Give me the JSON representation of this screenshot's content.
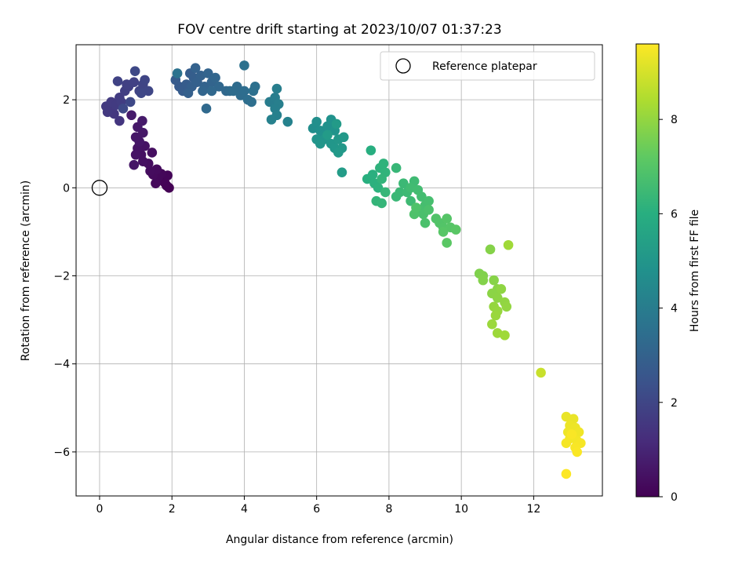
{
  "chart_data": {
    "type": "scatter",
    "title": "FOV centre drift starting at 2023/10/07 01:37:23",
    "xlabel": "Angular distance from reference (arcmin)",
    "ylabel": "Rotation from reference (arcmin)",
    "xlim": [
      -0.65,
      13.9
    ],
    "ylim": [
      -7.0,
      3.25
    ],
    "xticks": [
      0,
      2,
      4,
      6,
      8,
      10,
      12
    ],
    "yticks": [
      -6,
      -4,
      -2,
      0,
      2
    ],
    "grid": true,
    "legend": {
      "position": "top-right",
      "entries": [
        "Reference platepar"
      ]
    },
    "reference_point": {
      "x": 0,
      "y": 0,
      "label": "Reference platepar"
    },
    "colorbar": {
      "label": "Hours from first FF file",
      "range": [
        0,
        9.6
      ],
      "ticks": [
        0,
        2,
        4,
        6,
        8
      ],
      "colormap": "viridis"
    },
    "series": [
      {
        "color_variable": "hours",
        "points": [
          [
            1.92,
            0.0,
            0.0
          ],
          [
            1.85,
            0.05,
            0.03
          ],
          [
            1.8,
            0.12,
            0.06
          ],
          [
            1.75,
            0.2,
            0.09
          ],
          [
            1.88,
            0.28,
            0.12
          ],
          [
            1.7,
            0.32,
            0.15
          ],
          [
            1.62,
            0.25,
            0.18
          ],
          [
            1.55,
            0.1,
            0.21
          ],
          [
            1.48,
            0.3,
            0.24
          ],
          [
            1.58,
            0.42,
            0.27
          ],
          [
            1.4,
            0.38,
            0.3
          ],
          [
            1.35,
            0.55,
            0.33
          ],
          [
            1.45,
            0.8,
            0.36
          ],
          [
            1.2,
            0.6,
            0.39
          ],
          [
            1.15,
            0.75,
            0.42
          ],
          [
            1.25,
            0.95,
            0.45
          ],
          [
            1.05,
            0.9,
            0.48
          ],
          [
            1.0,
            0.75,
            0.51
          ],
          [
            0.95,
            0.52,
            0.54
          ],
          [
            1.1,
            1.05,
            0.57
          ],
          [
            1.0,
            1.15,
            0.6
          ],
          [
            1.2,
            1.25,
            0.63
          ],
          [
            1.05,
            1.38,
            0.66
          ],
          [
            1.18,
            1.52,
            0.69
          ],
          [
            0.88,
            1.65,
            0.72
          ],
          [
            0.55,
            1.52,
            1.5
          ],
          [
            0.4,
            1.68,
            1.52
          ],
          [
            0.3,
            1.8,
            1.55
          ],
          [
            0.22,
            1.72,
            1.58
          ],
          [
            0.18,
            1.85,
            1.61
          ],
          [
            0.32,
            1.95,
            1.64
          ],
          [
            0.45,
            1.88,
            1.67
          ],
          [
            0.55,
            2.05,
            1.7
          ],
          [
            0.6,
            1.95,
            1.73
          ],
          [
            0.7,
            2.2,
            1.76
          ],
          [
            0.8,
            2.3,
            1.79
          ],
          [
            0.75,
            2.35,
            1.82
          ],
          [
            0.95,
            2.4,
            1.85
          ],
          [
            0.5,
            2.42,
            1.88
          ],
          [
            1.1,
            2.2,
            1.91
          ],
          [
            1.2,
            2.35,
            1.94
          ],
          [
            1.25,
            2.45,
            1.97
          ],
          [
            1.35,
            2.2,
            2.0
          ],
          [
            1.15,
            2.15,
            2.03
          ],
          [
            0.98,
            2.65,
            2.06
          ],
          [
            0.85,
            1.95,
            2.09
          ],
          [
            0.65,
            1.8,
            2.12
          ],
          [
            2.2,
            2.3,
            2.7
          ],
          [
            2.1,
            2.45,
            2.73
          ],
          [
            2.3,
            2.2,
            2.76
          ],
          [
            2.4,
            2.35,
            2.79
          ],
          [
            2.5,
            2.6,
            2.82
          ],
          [
            2.6,
            2.5,
            2.85
          ],
          [
            2.55,
            2.3,
            2.88
          ],
          [
            2.45,
            2.15,
            2.91
          ],
          [
            2.7,
            2.4,
            2.94
          ],
          [
            2.8,
            2.55,
            2.97
          ],
          [
            2.65,
            2.72,
            3.0
          ],
          [
            2.9,
            2.3,
            3.03
          ],
          [
            3.0,
            2.6,
            3.06
          ],
          [
            3.1,
            2.4,
            3.09
          ],
          [
            2.85,
            2.2,
            3.12
          ],
          [
            3.2,
            2.5,
            3.15
          ],
          [
            3.3,
            2.3,
            3.18
          ],
          [
            3.5,
            2.2,
            3.21
          ],
          [
            3.1,
            2.2,
            3.24
          ],
          [
            2.95,
            1.8,
            3.27
          ],
          [
            3.6,
            2.2,
            3.3
          ],
          [
            3.8,
            2.3,
            3.33
          ],
          [
            3.7,
            2.2,
            3.36
          ],
          [
            3.9,
            2.1,
            3.39
          ],
          [
            4.0,
            2.2,
            3.42
          ],
          [
            4.1,
            2.0,
            3.45
          ],
          [
            4.2,
            1.95,
            3.48
          ],
          [
            4.3,
            2.3,
            3.51
          ],
          [
            4.25,
            2.2,
            3.54
          ],
          [
            4.0,
            2.78,
            3.57
          ],
          [
            2.15,
            2.6,
            3.6
          ],
          [
            4.7,
            1.95,
            4.0
          ],
          [
            4.85,
            2.05,
            4.03
          ],
          [
            4.9,
            2.25,
            4.06
          ],
          [
            4.95,
            1.9,
            4.09
          ],
          [
            4.85,
            1.8,
            4.12
          ],
          [
            4.9,
            1.65,
            4.15
          ],
          [
            4.75,
            1.55,
            4.18
          ],
          [
            5.2,
            1.5,
            4.21
          ],
          [
            5.9,
            1.35,
            4.7
          ],
          [
            6.0,
            1.5,
            4.73
          ],
          [
            6.1,
            1.3,
            4.76
          ],
          [
            6.2,
            1.2,
            4.79
          ],
          [
            6.3,
            1.4,
            4.82
          ],
          [
            6.4,
            1.55,
            4.85
          ],
          [
            6.5,
            1.3,
            4.88
          ],
          [
            6.2,
            1.1,
            4.91
          ],
          [
            6.0,
            1.1,
            4.94
          ],
          [
            6.1,
            1.0,
            4.97
          ],
          [
            6.4,
            1.0,
            5.0
          ],
          [
            6.5,
            0.9,
            5.03
          ],
          [
            6.6,
            1.1,
            5.06
          ],
          [
            6.7,
            0.9,
            5.09
          ],
          [
            6.6,
            0.8,
            5.12
          ],
          [
            6.75,
            1.15,
            5.15
          ],
          [
            6.55,
            1.45,
            5.18
          ],
          [
            6.3,
            1.2,
            5.21
          ],
          [
            6.7,
            0.35,
            5.24
          ],
          [
            7.5,
            0.85,
            6.0
          ],
          [
            7.4,
            0.2,
            6.03
          ],
          [
            7.55,
            0.3,
            6.06
          ],
          [
            7.6,
            0.1,
            6.09
          ],
          [
            7.7,
            0.0,
            6.12
          ],
          [
            7.75,
            0.45,
            6.15
          ],
          [
            7.85,
            0.55,
            6.18
          ],
          [
            7.9,
            0.35,
            6.21
          ],
          [
            7.8,
            0.2,
            6.24
          ],
          [
            7.65,
            -0.3,
            6.27
          ],
          [
            7.8,
            -0.35,
            6.3
          ],
          [
            7.9,
            -0.1,
            6.33
          ],
          [
            8.2,
            0.45,
            6.36
          ],
          [
            8.2,
            -0.2,
            6.39
          ],
          [
            8.3,
            -0.1,
            6.42
          ],
          [
            8.4,
            0.1,
            6.45
          ],
          [
            8.5,
            -0.1,
            6.48
          ],
          [
            8.6,
            -0.3,
            6.51
          ],
          [
            8.7,
            0.15,
            6.54
          ],
          [
            8.6,
            0.0,
            6.57
          ],
          [
            8.8,
            -0.05,
            6.6
          ],
          [
            8.9,
            -0.2,
            6.63
          ],
          [
            9.0,
            -0.4,
            6.66
          ],
          [
            9.1,
            -0.3,
            6.69
          ],
          [
            8.85,
            -0.5,
            6.72
          ],
          [
            8.95,
            -0.6,
            6.75
          ],
          [
            9.0,
            -0.8,
            6.78
          ],
          [
            9.1,
            -0.5,
            6.81
          ],
          [
            8.7,
            -0.6,
            6.84
          ],
          [
            8.75,
            -0.45,
            6.87
          ],
          [
            9.3,
            -0.7,
            6.9
          ],
          [
            9.4,
            -0.8,
            6.93
          ],
          [
            9.5,
            -0.9,
            6.96
          ],
          [
            9.6,
            -0.7,
            6.99
          ],
          [
            9.7,
            -0.9,
            7.02
          ],
          [
            9.5,
            -1.0,
            7.05
          ],
          [
            9.85,
            -0.95,
            7.08
          ],
          [
            9.6,
            -1.25,
            7.11
          ],
          [
            10.5,
            -1.95,
            7.7
          ],
          [
            10.6,
            -2.0,
            7.73
          ],
          [
            10.6,
            -2.1,
            7.76
          ],
          [
            10.8,
            -1.4,
            7.79
          ],
          [
            10.9,
            -2.1,
            7.82
          ],
          [
            11.0,
            -2.3,
            7.85
          ],
          [
            10.85,
            -2.4,
            7.88
          ],
          [
            11.0,
            -2.5,
            7.91
          ],
          [
            11.1,
            -2.3,
            7.94
          ],
          [
            11.2,
            -2.6,
            7.97
          ],
          [
            11.25,
            -2.7,
            8.0
          ],
          [
            10.9,
            -2.7,
            8.03
          ],
          [
            11.0,
            -2.8,
            8.06
          ],
          [
            10.95,
            -2.9,
            8.09
          ],
          [
            10.85,
            -3.1,
            8.12
          ],
          [
            11.0,
            -3.3,
            8.15
          ],
          [
            11.2,
            -3.35,
            8.18
          ],
          [
            11.3,
            -1.3,
            8.21
          ],
          [
            12.2,
            -4.2,
            8.8
          ],
          [
            12.9,
            -5.2,
            9.3
          ],
          [
            13.1,
            -5.25,
            9.32
          ],
          [
            13.0,
            -5.4,
            9.34
          ],
          [
            13.15,
            -5.45,
            9.36
          ],
          [
            12.95,
            -5.55,
            9.38
          ],
          [
            13.25,
            -5.55,
            9.4
          ],
          [
            13.1,
            -5.65,
            9.42
          ],
          [
            13.0,
            -5.7,
            9.44
          ],
          [
            13.2,
            -5.75,
            9.46
          ],
          [
            12.9,
            -5.8,
            9.48
          ],
          [
            13.3,
            -5.8,
            9.5
          ],
          [
            13.15,
            -5.9,
            9.52
          ],
          [
            13.05,
            -5.6,
            9.54
          ],
          [
            13.2,
            -6.0,
            9.56
          ],
          [
            12.9,
            -6.5,
            9.58
          ]
        ]
      }
    ]
  }
}
